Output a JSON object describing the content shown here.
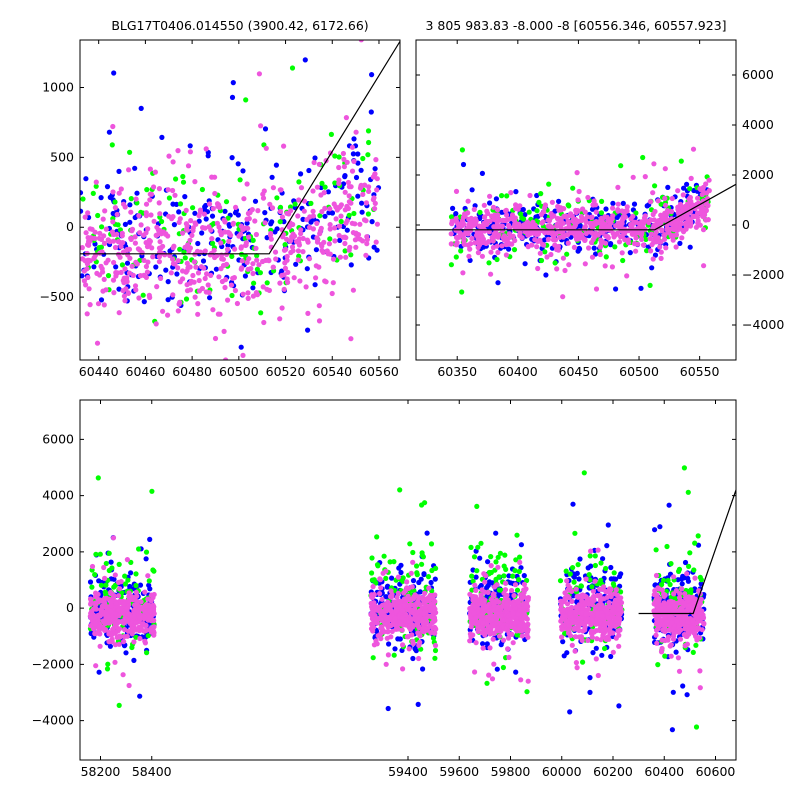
{
  "chart_data": [
    {
      "id": "top-left",
      "type": "scatter",
      "title": "BLG17T0406.014550 (3900.42, 6172.66)",
      "xlim": [
        60432,
        60569
      ],
      "ylim": [
        -950,
        1340
      ],
      "xticks": [
        60440,
        60460,
        60480,
        60500,
        60520,
        60540,
        60560
      ],
      "yticks": [
        -500,
        0,
        500,
        1000
      ],
      "ytick_side": "left",
      "grid": false,
      "series": [
        {
          "color": "#0000ff",
          "x_range": [
            60432,
            60560
          ],
          "y_center": -50,
          "y_spread": 420,
          "y_trend_start": 60515,
          "y_trend_slope": 8,
          "count": 260
        },
        {
          "color": "#00ff00",
          "x_range": [
            60432,
            60560
          ],
          "y_center": -20,
          "y_spread": 450,
          "y_trend_start": 60515,
          "y_trend_slope": 8,
          "count": 140
        },
        {
          "color": "#ee55dd",
          "x_range": [
            60432,
            60560
          ],
          "y_center": -150,
          "y_spread": 380,
          "y_trend_start": 60515,
          "y_trend_slope": 8,
          "count": 600
        }
      ],
      "model": [
        [
          60432,
          -190
        ],
        [
          60513,
          -190
        ],
        [
          60569,
          1330
        ]
      ]
    },
    {
      "id": "top-right",
      "type": "scatter",
      "title": "3 805 983.83 -8.000 -8 [60556.346, 60557.923]",
      "xlim": [
        60316,
        60580
      ],
      "ylim": [
        -5400,
        7400
      ],
      "xticks": [
        60350,
        60400,
        60450,
        60500,
        60550
      ],
      "yticks": [
        -4000,
        -2000,
        0,
        2000,
        4000,
        6000
      ],
      "ytick_side": "right",
      "grid": false,
      "series": [
        {
          "color": "#0000ff",
          "x_range": [
            60345,
            60558
          ],
          "y_center": -100,
          "y_spread": 900,
          "y_trend_start": 60515,
          "y_trend_slope": 25,
          "count": 320
        },
        {
          "color": "#00ff00",
          "x_range": [
            60345,
            60558
          ],
          "y_center": 0,
          "y_spread": 1000,
          "y_trend_start": 60515,
          "y_trend_slope": 25,
          "count": 160
        },
        {
          "color": "#ee55dd",
          "x_range": [
            60345,
            60558
          ],
          "y_center": -150,
          "y_spread": 700,
          "y_trend_start": 60515,
          "y_trend_slope": 25,
          "count": 700
        }
      ],
      "model": [
        [
          60316,
          -190
        ],
        [
          60513,
          -190
        ],
        [
          60580,
          1630
        ]
      ]
    },
    {
      "id": "bottom",
      "type": "scatter",
      "title": "",
      "xlim": [
        58120,
        60680
      ],
      "ylim": [
        -5400,
        7400
      ],
      "xticks": [
        58200,
        58400,
        59400,
        59600,
        59800,
        60000,
        60200,
        60400,
        60600
      ],
      "yticks": [
        -4000,
        -2000,
        0,
        2000,
        4000,
        6000
      ],
      "ytick_side": "left",
      "grid": false,
      "segments": [
        [
          58160,
          58410
        ],
        [
          59255,
          59510
        ],
        [
          59640,
          59870
        ],
        [
          59995,
          60235
        ],
        [
          60360,
          60555
        ]
      ],
      "series": [
        {
          "color": "#0000ff",
          "x_range": [
            58160,
            60555
          ],
          "y_center": 0,
          "y_spread": 1100,
          "count": 900
        },
        {
          "color": "#00ff00",
          "x_range": [
            58160,
            60555
          ],
          "y_center": 300,
          "y_spread": 1500,
          "count": 450
        },
        {
          "color": "#ee55dd",
          "x_range": [
            58160,
            60555
          ],
          "y_center": -250,
          "y_spread": 700,
          "count": 1800
        }
      ],
      "model": [
        [
          60300,
          -190
        ],
        [
          60513,
          -190
        ],
        [
          60680,
          4200
        ]
      ]
    }
  ]
}
